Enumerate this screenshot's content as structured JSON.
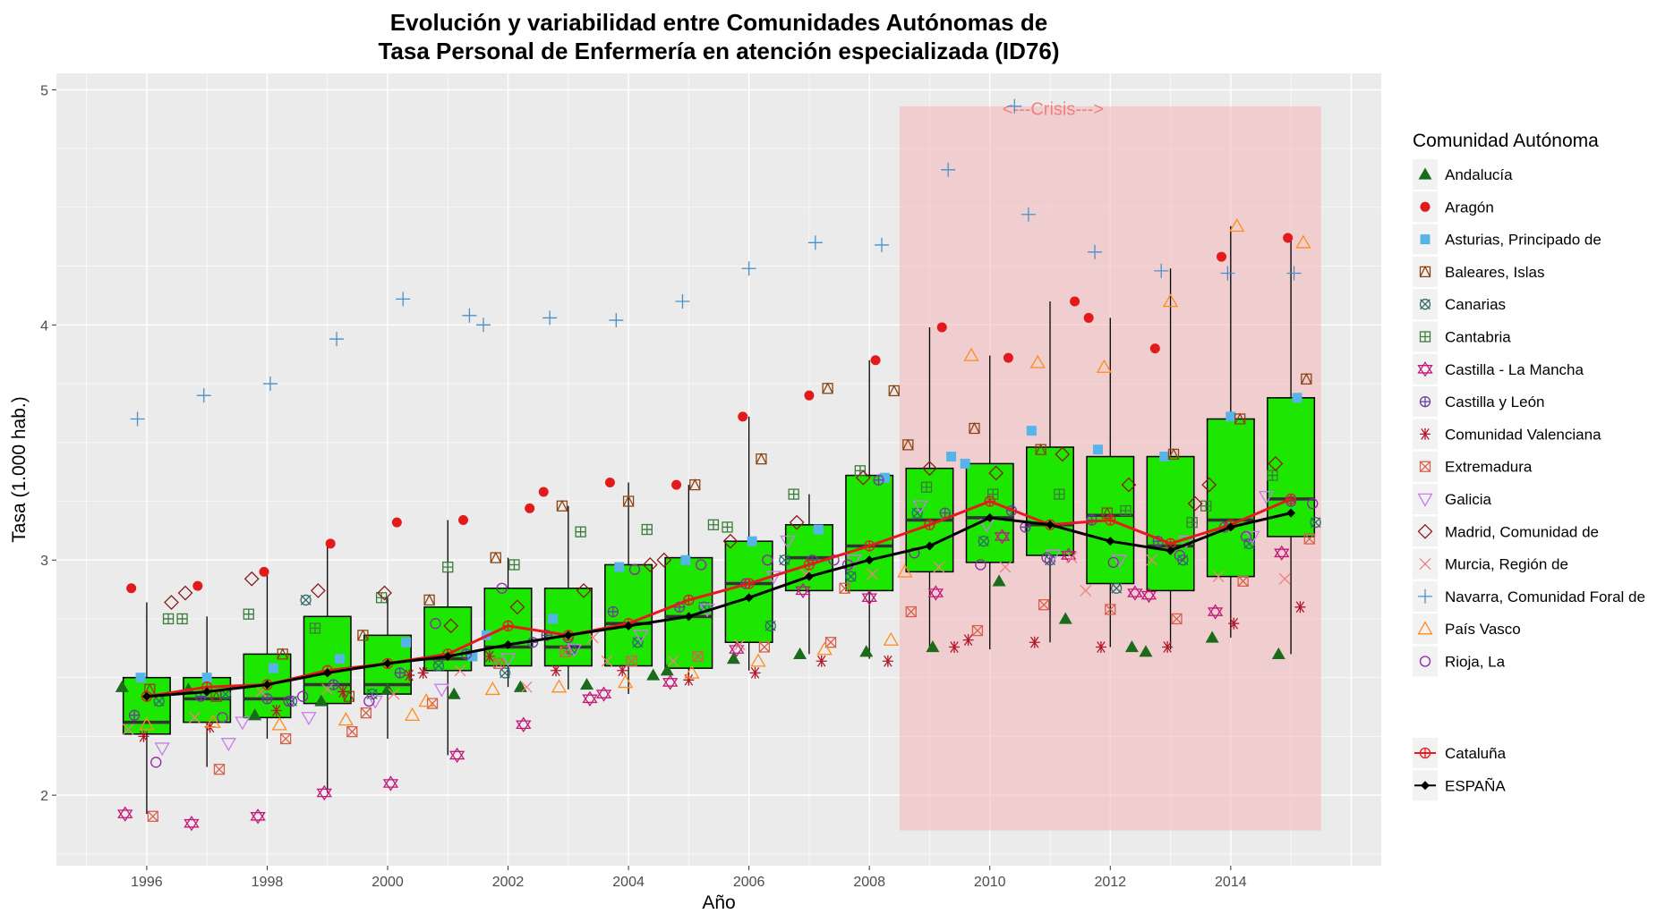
{
  "chart_data": {
    "type": "boxplot",
    "title_lines": [
      "Evolución y variabilidad entre Comunidades Autónomas de",
      "Tasa Personal de Enfermería en atención especializada (ID76)"
    ],
    "xlabel": "Año",
    "ylabel": "Tasa (1.000 hab.)",
    "xlim": [
      1994.5,
      2016.5
    ],
    "ylim": [
      1.7,
      5.07
    ],
    "x_ticks": [
      1996,
      1998,
      2000,
      2002,
      2004,
      2006,
      2008,
      2010,
      2012,
      2014
    ],
    "y_ticks": [
      2,
      3,
      4,
      5
    ],
    "crisis": {
      "label": "<---Crisis--->",
      "x_from": 2008.5,
      "x_to": 2015.5,
      "y_from": 1.85,
      "y_to": 4.93,
      "color": "#f4b6b9"
    },
    "box_color": "#1de600",
    "boxes": [
      {
        "year": 1996,
        "min": 1.92,
        "q1": 2.26,
        "median": 2.31,
        "q3": 2.5,
        "max": 2.82
      },
      {
        "year": 1997,
        "min": 2.12,
        "q1": 2.31,
        "median": 2.41,
        "q3": 2.5,
        "max": 2.76
      },
      {
        "year": 1998,
        "min": 2.24,
        "q1": 2.33,
        "median": 2.41,
        "q3": 2.6,
        "max": 2.95
      },
      {
        "year": 1999,
        "min": 2.01,
        "q1": 2.39,
        "median": 2.47,
        "q3": 2.76,
        "max": 3.07
      },
      {
        "year": 2000,
        "min": 2.24,
        "q1": 2.43,
        "median": 2.47,
        "q3": 2.68,
        "max": 2.84
      },
      {
        "year": 2001,
        "min": 2.17,
        "q1": 2.53,
        "median": 2.58,
        "q3": 2.8,
        "max": 3.17
      },
      {
        "year": 2002,
        "min": 2.46,
        "q1": 2.55,
        "median": 2.63,
        "q3": 2.88,
        "max": 3.01
      },
      {
        "year": 2003,
        "min": 2.45,
        "q1": 2.55,
        "median": 2.63,
        "q3": 2.88,
        "max": 3.23
      },
      {
        "year": 2004,
        "min": 2.43,
        "q1": 2.55,
        "median": 2.73,
        "q3": 2.98,
        "max": 3.33
      },
      {
        "year": 2005,
        "min": 2.48,
        "q1": 2.54,
        "median": 2.76,
        "q3": 3.01,
        "max": 3.32
      },
      {
        "year": 2006,
        "min": 2.53,
        "q1": 2.65,
        "median": 2.9,
        "q3": 3.08,
        "max": 3.61
      },
      {
        "year": 2007,
        "min": 2.6,
        "q1": 2.87,
        "median": 3.01,
        "q3": 3.15,
        "max": 3.28
      },
      {
        "year": 2008,
        "min": 2.58,
        "q1": 2.87,
        "median": 3.06,
        "q3": 3.36,
        "max": 3.85
      },
      {
        "year": 2009,
        "min": 2.63,
        "q1": 2.95,
        "median": 3.17,
        "q3": 3.39,
        "max": 3.99
      },
      {
        "year": 2010,
        "min": 2.62,
        "q1": 2.99,
        "median": 3.18,
        "q3": 3.41,
        "max": 3.87
      },
      {
        "year": 2011,
        "min": 2.65,
        "q1": 3.02,
        "median": 3.15,
        "q3": 3.48,
        "max": 4.1
      },
      {
        "year": 2012,
        "min": 2.63,
        "q1": 2.9,
        "median": 3.19,
        "q3": 3.44,
        "max": 4.03
      },
      {
        "year": 2013,
        "min": 2.62,
        "q1": 2.87,
        "median": 3.06,
        "q3": 3.44,
        "max": 4.24
      },
      {
        "year": 2014,
        "min": 2.67,
        "q1": 2.93,
        "median": 3.17,
        "q3": 3.6,
        "max": 4.42
      },
      {
        "year": 2015,
        "min": 2.6,
        "q1": 3.1,
        "median": 3.26,
        "q3": 3.69,
        "max": 4.38
      }
    ],
    "lines": [
      {
        "name": "ESPAÑA",
        "color": "#000000",
        "shape": "diamond",
        "values": [
          2.42,
          2.44,
          2.47,
          2.52,
          2.56,
          2.59,
          2.64,
          2.68,
          2.72,
          2.76,
          2.84,
          2.93,
          3.0,
          3.06,
          3.18,
          3.15,
          3.08,
          3.04,
          3.14,
          3.2
        ]
      },
      {
        "name": "Cataluña",
        "color": "#e41a1c",
        "shape": "circle-plus",
        "values": [
          2.42,
          2.46,
          2.47,
          2.53,
          2.56,
          2.6,
          2.72,
          2.68,
          2.73,
          2.83,
          2.9,
          2.98,
          3.06,
          3.15,
          3.25,
          3.15,
          3.17,
          3.07,
          3.15,
          3.26
        ]
      }
    ],
    "series": [
      {
        "name": "Andalucía",
        "color": "#1a6b1a",
        "shape": "triangle-filled",
        "values": [
          2.46,
          2.45,
          2.34,
          2.4,
          2.45,
          2.43,
          2.46,
          2.47,
          2.51,
          2.53,
          2.58,
          2.6,
          2.61,
          2.63,
          2.91,
          2.75,
          2.63,
          2.61,
          2.67,
          2.6
        ]
      },
      {
        "name": "Aragón",
        "color": "#e31a1c",
        "shape": "circle-filled",
        "values": [
          2.88,
          2.89,
          2.95,
          3.07,
          3.16,
          3.17,
          3.22,
          3.29,
          3.33,
          3.32,
          3.61,
          3.7,
          3.85,
          3.99,
          3.86,
          4.1,
          4.03,
          3.9,
          4.29,
          4.37
        ]
      },
      {
        "name": "Asturias, Principado de",
        "color": "#56b4e9",
        "shape": "square-filled",
        "values": [
          2.5,
          2.5,
          2.54,
          2.58,
          2.65,
          2.59,
          2.68,
          2.75,
          2.97,
          3.0,
          3.08,
          3.13,
          3.35,
          3.44,
          3.41,
          3.55,
          3.47,
          3.44,
          3.61,
          3.69
        ]
      },
      {
        "name": "Baleares, Islas",
        "color": "#8b4513",
        "shape": "square-cross",
        "values": [
          2.45,
          2.42,
          2.6,
          2.42,
          2.68,
          2.83,
          3.01,
          3.23,
          3.25,
          3.32,
          3.43,
          3.73,
          3.72,
          3.49,
          3.56,
          3.47,
          3.2,
          3.45,
          3.6,
          3.77
        ]
      },
      {
        "name": "Canarias",
        "color": "#2f6b6b",
        "shape": "circle-x",
        "values": [
          2.4,
          2.43,
          2.4,
          2.83,
          2.43,
          2.55,
          2.52,
          2.62,
          2.65,
          2.8,
          2.72,
          3.0,
          2.93,
          3.2,
          3.08,
          3.0,
          2.88,
          3.0,
          3.07,
          3.16
        ]
      },
      {
        "name": "Cantabria",
        "color": "#3a7d3a",
        "shape": "square-plus",
        "values": [
          2.75,
          2.75,
          2.77,
          2.71,
          2.84,
          2.97,
          2.98,
          3.12,
          3.13,
          3.15,
          3.14,
          3.28,
          3.38,
          3.31,
          3.28,
          3.28,
          3.21,
          3.16,
          3.23,
          3.36
        ]
      },
      {
        "name": "Castilla - La Mancha",
        "color": "#c2187a",
        "shape": "star-david",
        "values": [
          1.92,
          1.88,
          1.91,
          2.01,
          2.05,
          2.17,
          2.3,
          2.41,
          2.43,
          2.48,
          2.62,
          2.87,
          2.84,
          2.86,
          3.1,
          3.02,
          2.86,
          2.85,
          2.78,
          3.03
        ]
      },
      {
        "name": "Castilla y León",
        "color": "#6a3d9a",
        "shape": "circle-plus",
        "values": [
          2.34,
          2.42,
          2.41,
          2.47,
          2.52,
          2.6,
          2.65,
          2.68,
          2.78,
          2.8,
          2.9,
          3.0,
          3.34,
          3.2,
          3.21,
          3.14,
          3.17,
          3.08,
          3.14,
          3.25
        ]
      },
      {
        "name": "Comunidad Valenciana",
        "color": "#b2182b",
        "shape": "asterisk",
        "values": [
          2.25,
          2.29,
          2.36,
          2.44,
          2.51,
          2.52,
          2.59,
          2.53,
          2.53,
          2.49,
          2.52,
          2.57,
          2.57,
          2.63,
          2.66,
          2.65,
          2.63,
          2.63,
          2.73,
          2.8
        ]
      },
      {
        "name": "Extremadura",
        "color": "#d6604d",
        "shape": "square-x",
        "values": [
          1.91,
          2.11,
          2.24,
          2.27,
          2.35,
          2.39,
          2.56,
          2.61,
          2.57,
          2.59,
          2.63,
          2.65,
          2.88,
          2.78,
          2.7,
          2.81,
          2.79,
          2.75,
          2.91,
          3.09
        ]
      },
      {
        "name": "Galicia",
        "color": "#c77de8",
        "shape": "triangle-down",
        "values": [
          2.2,
          2.22,
          2.31,
          2.33,
          2.4,
          2.45,
          2.58,
          2.62,
          2.68,
          2.79,
          2.93,
          3.08,
          3.0,
          3.23,
          3.15,
          3.02,
          3.0,
          3.08,
          3.1,
          3.27
        ]
      },
      {
        "name": "Madrid, Comunidad de",
        "color": "#8b1a1a",
        "shape": "diamond-open",
        "values": [
          2.82,
          2.86,
          2.92,
          2.87,
          2.86,
          2.72,
          2.8,
          2.87,
          2.98,
          3.0,
          3.08,
          3.16,
          3.35,
          3.39,
          3.37,
          3.45,
          3.32,
          3.24,
          3.32,
          3.41
        ]
      },
      {
        "name": "Murcia, Región de",
        "color": "#f08080",
        "shape": "x",
        "values": [
          2.28,
          2.33,
          2.44,
          2.45,
          2.43,
          2.53,
          2.46,
          2.67,
          2.57,
          2.57,
          2.64,
          2.94,
          2.94,
          2.97,
          2.97,
          3.01,
          2.87,
          3.0,
          2.93,
          2.92
        ]
      },
      {
        "name": "Navarra, Comunidad Foral de",
        "color": "#4a90c8",
        "shape": "plus",
        "values": [
          3.6,
          3.7,
          3.75,
          3.94,
          4.11,
          4.04,
          4.0,
          4.03,
          4.02,
          4.1,
          4.24,
          4.35,
          4.34,
          4.66,
          4.93,
          4.47,
          4.31,
          4.23,
          4.22,
          4.22
        ]
      },
      {
        "name": "País Vasco",
        "color": "#ff8c1a",
        "shape": "triangle-open",
        "values": [
          2.3,
          2.31,
          2.3,
          2.32,
          2.34,
          2.4,
          2.45,
          2.46,
          2.48,
          2.52,
          2.57,
          2.62,
          2.66,
          2.95,
          3.87,
          3.84,
          3.82,
          4.1,
          4.42,
          4.35
        ]
      },
      {
        "name": "Rioja, La",
        "color": "#8e24aa",
        "shape": "circle-open",
        "values": [
          2.14,
          2.33,
          2.4,
          2.42,
          2.4,
          2.73,
          2.88,
          2.67,
          2.96,
          2.98,
          3.0,
          3.0,
          2.98,
          3.03,
          2.98,
          3.01,
          2.99,
          3.02,
          3.1,
          3.24
        ]
      }
    ],
    "legend_title": "Comunidad Autónoma",
    "legend_placement": "right"
  }
}
